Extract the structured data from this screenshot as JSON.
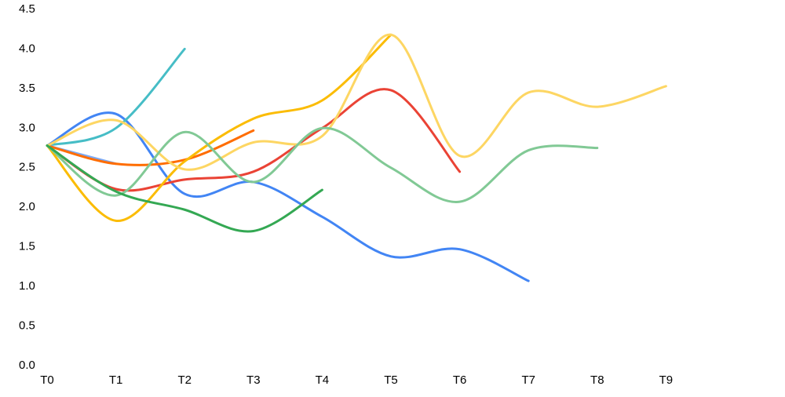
{
  "chart_data": {
    "type": "line",
    "smooth": true,
    "grid": false,
    "categories": [
      "T0",
      "T1",
      "T2",
      "T3",
      "T4",
      "T5",
      "T6",
      "T7",
      "T8",
      "T9"
    ],
    "ylim": [
      0,
      4.5
    ],
    "yticks": [
      {
        "value": 0,
        "label": "0.0"
      },
      0.5,
      {
        "value": 1,
        "label": "1.0"
      },
      1.5,
      {
        "value": 2,
        "label": "2.0"
      },
      2.5,
      {
        "value": 3,
        "label": "3.0"
      },
      3.5,
      {
        "value": 4,
        "label": "4.0"
      },
      4.5
    ],
    "series": [
      {
        "color": "#4285f4",
        "values": [
          2.78,
          3.18,
          2.17,
          2.32,
          1.88,
          1.38,
          1.47,
          1.07,
          null,
          null
        ]
      },
      {
        "color": "#46bdc6",
        "values": [
          2.78,
          3.0,
          4.0,
          null,
          null,
          null,
          null,
          null,
          null,
          null
        ]
      },
      {
        "color": "#7baaf7",
        "values": [
          2.78,
          2.55,
          null,
          null,
          null,
          null,
          null,
          null,
          null,
          null
        ]
      },
      {
        "color": "#ff6d01",
        "values": [
          2.78,
          2.55,
          2.6,
          2.97,
          null,
          null,
          null,
          null,
          null,
          null
        ]
      },
      {
        "color": "#ea4335",
        "values": [
          2.78,
          2.23,
          2.35,
          2.45,
          3.0,
          3.48,
          2.45,
          null,
          null,
          null
        ]
      },
      {
        "color": "#fbbc04",
        "values": [
          2.78,
          1.83,
          2.58,
          3.12,
          3.35,
          4.18,
          null,
          null,
          null,
          null
        ]
      },
      {
        "color": "#fdd663",
        "values": [
          2.78,
          3.1,
          2.48,
          2.82,
          2.9,
          4.18,
          2.65,
          3.45,
          3.27,
          3.53
        ]
      },
      {
        "color": "#81c995",
        "values": [
          2.78,
          2.15,
          2.95,
          2.32,
          3.0,
          2.5,
          2.07,
          2.72,
          2.75,
          null
        ]
      },
      {
        "color": "#34a853",
        "values": [
          2.78,
          2.2,
          1.97,
          1.7,
          2.22,
          null,
          null,
          null,
          null,
          null
        ]
      }
    ]
  }
}
